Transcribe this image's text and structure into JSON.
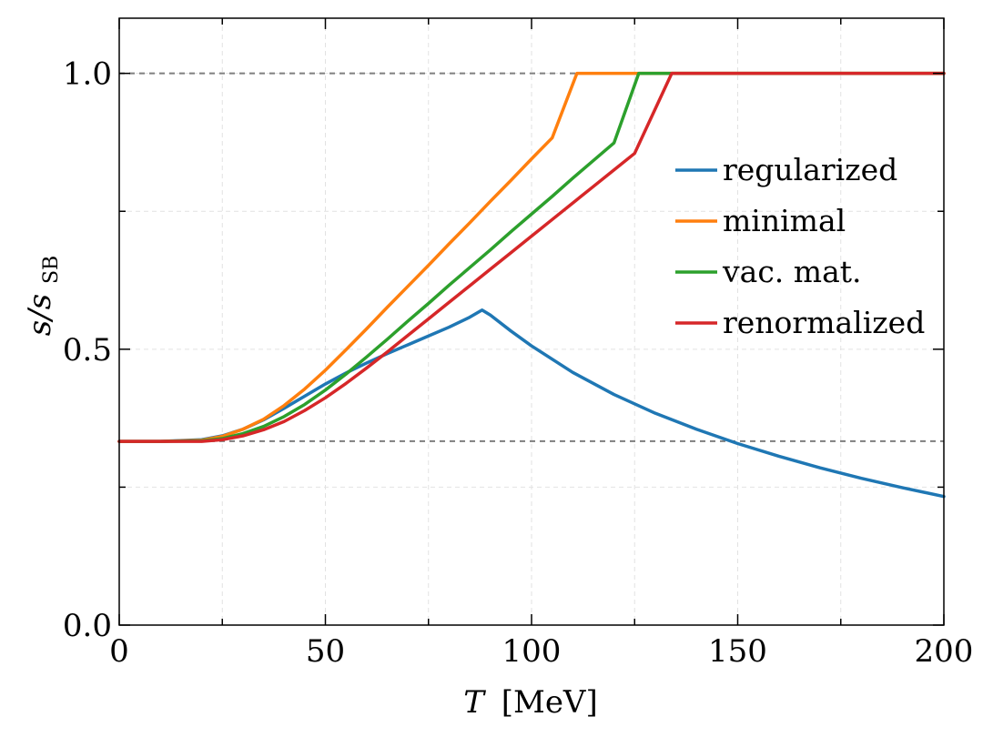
{
  "chart_data": {
    "type": "line",
    "xlabel_var": "T",
    "xlabel_unit": "[MeV]",
    "ylabel_var": "s/s",
    "ylabel_sub": "SB",
    "xlim": [
      0,
      200
    ],
    "ylim": [
      0,
      1.1
    ],
    "x_ticks": [
      0,
      50,
      100,
      150,
      200
    ],
    "x_minor_ticks": [
      25,
      75,
      125,
      175
    ],
    "y_ticks": [
      0.0,
      0.5,
      1.0
    ],
    "y_minor_ticks": [
      0.25,
      0.75
    ],
    "x_tick_labels": [
      "0",
      "50",
      "100",
      "150",
      "200"
    ],
    "y_tick_labels": [
      "0.0",
      "0.5",
      "1.0"
    ],
    "grid": true,
    "reference_lines": [
      1.0,
      0.3333
    ],
    "legend_position": "right",
    "series": [
      {
        "name": "regularized",
        "color": "#1f77b4",
        "x": [
          0,
          10,
          20,
          25,
          30,
          35,
          40,
          45,
          50,
          55,
          60,
          65,
          70,
          75,
          80,
          85,
          88,
          90,
          95,
          100,
          110,
          120,
          130,
          140,
          150,
          160,
          170,
          180,
          190,
          200
        ],
        "y": [
          0.333,
          0.333,
          0.336,
          0.343,
          0.355,
          0.372,
          0.393,
          0.415,
          0.437,
          0.457,
          0.475,
          0.492,
          0.508,
          0.524,
          0.54,
          0.558,
          0.571,
          0.562,
          0.533,
          0.506,
          0.458,
          0.418,
          0.384,
          0.355,
          0.329,
          0.306,
          0.285,
          0.266,
          0.249,
          0.233
        ]
      },
      {
        "name": "minimal",
        "color": "#ff7f0e",
        "x": [
          0,
          10,
          20,
          25,
          30,
          35,
          40,
          45,
          50,
          55,
          60,
          65,
          70,
          75,
          80,
          85,
          90,
          95,
          100,
          105,
          111,
          120,
          140,
          160,
          180,
          200
        ],
        "y": [
          0.333,
          0.333,
          0.335,
          0.342,
          0.355,
          0.373,
          0.398,
          0.428,
          0.462,
          0.499,
          0.537,
          0.576,
          0.614,
          0.652,
          0.691,
          0.729,
          0.768,
          0.806,
          0.845,
          0.883,
          1.0,
          1.0,
          1.0,
          1.0,
          1.0,
          1.0
        ]
      },
      {
        "name": "vac. mat.",
        "color": "#2ca02c",
        "x": [
          0,
          10,
          20,
          25,
          30,
          35,
          40,
          45,
          50,
          55,
          60,
          65,
          70,
          75,
          80,
          85,
          90,
          95,
          100,
          105,
          110,
          115,
          120,
          126,
          130,
          140,
          160,
          180,
          200
        ],
        "y": [
          0.333,
          0.333,
          0.334,
          0.338,
          0.347,
          0.36,
          0.378,
          0.4,
          0.426,
          0.455,
          0.486,
          0.518,
          0.551,
          0.583,
          0.616,
          0.648,
          0.68,
          0.713,
          0.745,
          0.777,
          0.81,
          0.842,
          0.874,
          1.0,
          1.0,
          1.0,
          1.0,
          1.0,
          1.0
        ]
      },
      {
        "name": "renormalized",
        "color": "#d62728",
        "x": [
          0,
          10,
          20,
          25,
          30,
          35,
          40,
          45,
          50,
          55,
          60,
          65,
          70,
          75,
          80,
          85,
          90,
          95,
          100,
          105,
          110,
          115,
          120,
          125,
          134,
          140,
          160,
          180,
          200
        ],
        "y": [
          0.333,
          0.333,
          0.333,
          0.336,
          0.343,
          0.354,
          0.369,
          0.389,
          0.412,
          0.438,
          0.466,
          0.495,
          0.525,
          0.555,
          0.585,
          0.615,
          0.645,
          0.675,
          0.705,
          0.735,
          0.765,
          0.795,
          0.825,
          0.855,
          1.0,
          1.0,
          1.0,
          1.0,
          1.0
        ]
      }
    ]
  }
}
